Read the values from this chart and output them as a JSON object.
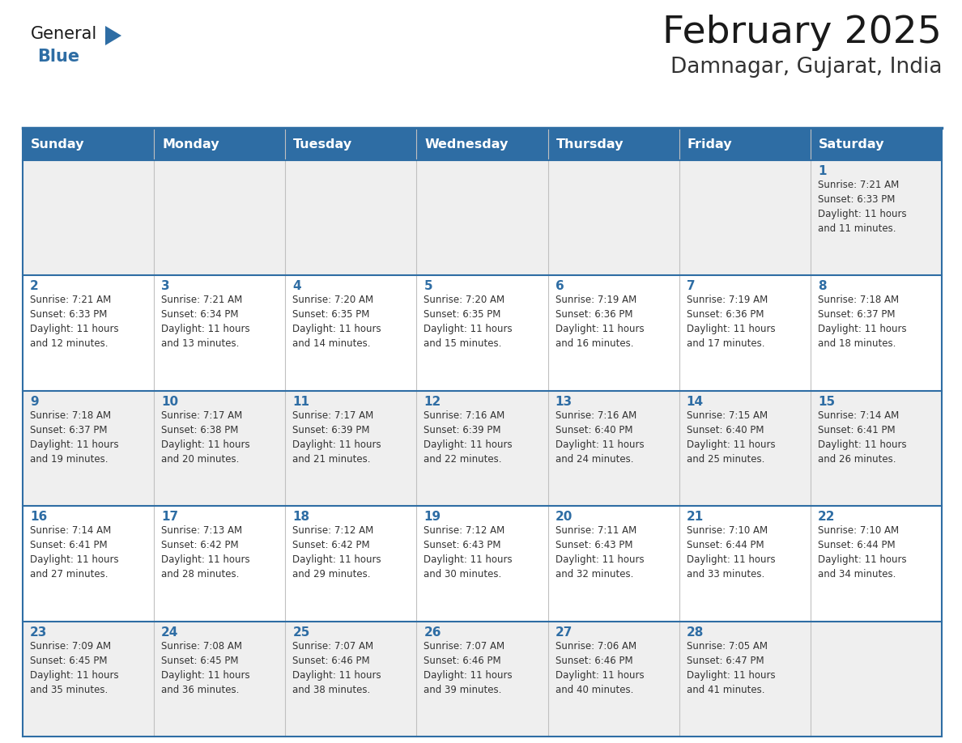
{
  "title": "February 2025",
  "subtitle": "Damnagar, Gujarat, India",
  "header_bg": "#2E6DA4",
  "header_text_color": "#FFFFFF",
  "cell_bg_row0": "#EFEFEF",
  "cell_bg_row1": "#FFFFFF",
  "cell_bg_row2": "#EFEFEF",
  "cell_bg_row3": "#FFFFFF",
  "cell_bg_row4": "#EFEFEF",
  "border_color": "#2E6DA4",
  "day_headers": [
    "Sunday",
    "Monday",
    "Tuesday",
    "Wednesday",
    "Thursday",
    "Friday",
    "Saturday"
  ],
  "title_color": "#1a1a1a",
  "subtitle_color": "#333333",
  "day_number_color": "#2E6DA4",
  "info_color": "#333333",
  "logo_general_color": "#1a1a1a",
  "logo_blue_color": "#2E6DA4",
  "logo_triangle_color": "#2E6DA4",
  "calendar": [
    [
      {
        "day": "",
        "info": ""
      },
      {
        "day": "",
        "info": ""
      },
      {
        "day": "",
        "info": ""
      },
      {
        "day": "",
        "info": ""
      },
      {
        "day": "",
        "info": ""
      },
      {
        "day": "",
        "info": ""
      },
      {
        "day": "1",
        "info": "Sunrise: 7:21 AM\nSunset: 6:33 PM\nDaylight: 11 hours\nand 11 minutes."
      }
    ],
    [
      {
        "day": "2",
        "info": "Sunrise: 7:21 AM\nSunset: 6:33 PM\nDaylight: 11 hours\nand 12 minutes."
      },
      {
        "day": "3",
        "info": "Sunrise: 7:21 AM\nSunset: 6:34 PM\nDaylight: 11 hours\nand 13 minutes."
      },
      {
        "day": "4",
        "info": "Sunrise: 7:20 AM\nSunset: 6:35 PM\nDaylight: 11 hours\nand 14 minutes."
      },
      {
        "day": "5",
        "info": "Sunrise: 7:20 AM\nSunset: 6:35 PM\nDaylight: 11 hours\nand 15 minutes."
      },
      {
        "day": "6",
        "info": "Sunrise: 7:19 AM\nSunset: 6:36 PM\nDaylight: 11 hours\nand 16 minutes."
      },
      {
        "day": "7",
        "info": "Sunrise: 7:19 AM\nSunset: 6:36 PM\nDaylight: 11 hours\nand 17 minutes."
      },
      {
        "day": "8",
        "info": "Sunrise: 7:18 AM\nSunset: 6:37 PM\nDaylight: 11 hours\nand 18 minutes."
      }
    ],
    [
      {
        "day": "9",
        "info": "Sunrise: 7:18 AM\nSunset: 6:37 PM\nDaylight: 11 hours\nand 19 minutes."
      },
      {
        "day": "10",
        "info": "Sunrise: 7:17 AM\nSunset: 6:38 PM\nDaylight: 11 hours\nand 20 minutes."
      },
      {
        "day": "11",
        "info": "Sunrise: 7:17 AM\nSunset: 6:39 PM\nDaylight: 11 hours\nand 21 minutes."
      },
      {
        "day": "12",
        "info": "Sunrise: 7:16 AM\nSunset: 6:39 PM\nDaylight: 11 hours\nand 22 minutes."
      },
      {
        "day": "13",
        "info": "Sunrise: 7:16 AM\nSunset: 6:40 PM\nDaylight: 11 hours\nand 24 minutes."
      },
      {
        "day": "14",
        "info": "Sunrise: 7:15 AM\nSunset: 6:40 PM\nDaylight: 11 hours\nand 25 minutes."
      },
      {
        "day": "15",
        "info": "Sunrise: 7:14 AM\nSunset: 6:41 PM\nDaylight: 11 hours\nand 26 minutes."
      }
    ],
    [
      {
        "day": "16",
        "info": "Sunrise: 7:14 AM\nSunset: 6:41 PM\nDaylight: 11 hours\nand 27 minutes."
      },
      {
        "day": "17",
        "info": "Sunrise: 7:13 AM\nSunset: 6:42 PM\nDaylight: 11 hours\nand 28 minutes."
      },
      {
        "day": "18",
        "info": "Sunrise: 7:12 AM\nSunset: 6:42 PM\nDaylight: 11 hours\nand 29 minutes."
      },
      {
        "day": "19",
        "info": "Sunrise: 7:12 AM\nSunset: 6:43 PM\nDaylight: 11 hours\nand 30 minutes."
      },
      {
        "day": "20",
        "info": "Sunrise: 7:11 AM\nSunset: 6:43 PM\nDaylight: 11 hours\nand 32 minutes."
      },
      {
        "day": "21",
        "info": "Sunrise: 7:10 AM\nSunset: 6:44 PM\nDaylight: 11 hours\nand 33 minutes."
      },
      {
        "day": "22",
        "info": "Sunrise: 7:10 AM\nSunset: 6:44 PM\nDaylight: 11 hours\nand 34 minutes."
      }
    ],
    [
      {
        "day": "23",
        "info": "Sunrise: 7:09 AM\nSunset: 6:45 PM\nDaylight: 11 hours\nand 35 minutes."
      },
      {
        "day": "24",
        "info": "Sunrise: 7:08 AM\nSunset: 6:45 PM\nDaylight: 11 hours\nand 36 minutes."
      },
      {
        "day": "25",
        "info": "Sunrise: 7:07 AM\nSunset: 6:46 PM\nDaylight: 11 hours\nand 38 minutes."
      },
      {
        "day": "26",
        "info": "Sunrise: 7:07 AM\nSunset: 6:46 PM\nDaylight: 11 hours\nand 39 minutes."
      },
      {
        "day": "27",
        "info": "Sunrise: 7:06 AM\nSunset: 6:46 PM\nDaylight: 11 hours\nand 40 minutes."
      },
      {
        "day": "28",
        "info": "Sunrise: 7:05 AM\nSunset: 6:47 PM\nDaylight: 11 hours\nand 41 minutes."
      },
      {
        "day": "",
        "info": ""
      }
    ]
  ]
}
